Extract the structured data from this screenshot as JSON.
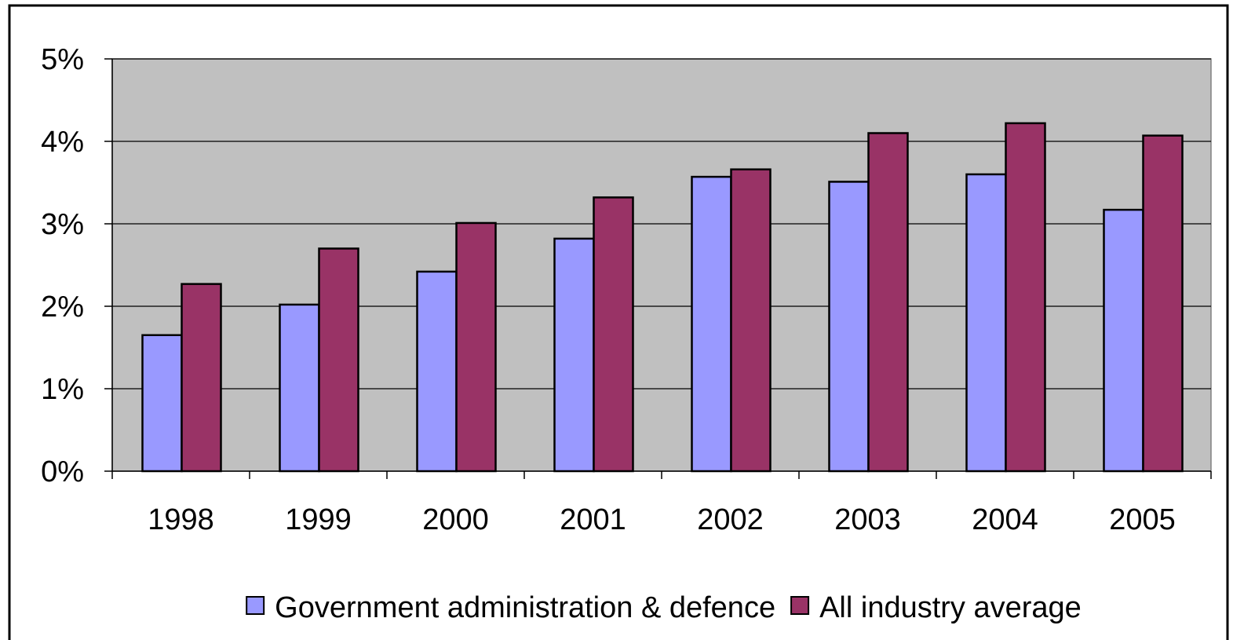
{
  "chart_data": {
    "type": "bar",
    "title": "",
    "xlabel": "",
    "ylabel": "",
    "categories": [
      "1998",
      "1999",
      "2000",
      "2001",
      "2002",
      "2003",
      "2004",
      "2005"
    ],
    "series": [
      {
        "name": "Government administration & defence",
        "color": "#9999FF",
        "values": [
          1.65,
          2.02,
          2.42,
          2.82,
          3.57,
          3.51,
          3.6,
          3.17
        ]
      },
      {
        "name": "All industry average",
        "color": "#993366",
        "values": [
          2.27,
          2.7,
          3.01,
          3.32,
          3.66,
          4.1,
          4.22,
          4.07
        ]
      }
    ],
    "ylim": [
      0,
      5
    ],
    "yticks": [
      "0%",
      "1%",
      "2%",
      "3%",
      "4%",
      "5%"
    ],
    "grid": true,
    "plot_background": "#C0C0C0",
    "legend_position": "bottom"
  }
}
